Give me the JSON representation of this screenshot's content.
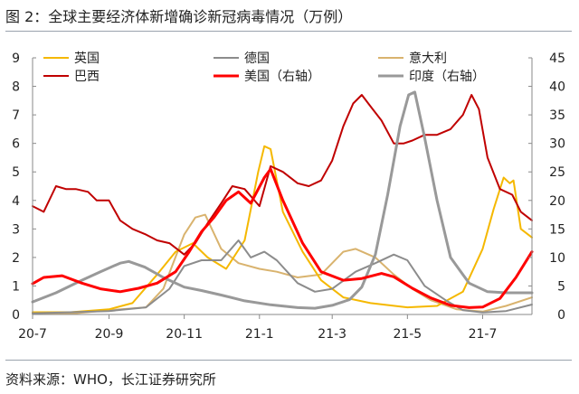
{
  "title": "图 2：全球主要经济体新增确诊新冠病毒情况（万例）",
  "source": "资料来源：WHO，长江证券研究所",
  "chart_data": {
    "type": "line",
    "x_ticks": [
      "20-7",
      "20-9",
      "20-11",
      "21-1",
      "21-3",
      "21-5",
      "21-7"
    ],
    "x_range": [
      "2020-07-01",
      "2021-08-10"
    ],
    "ylim_left": [
      0,
      9
    ],
    "yticks_left": [
      "0",
      "1",
      "2",
      "3",
      "4",
      "5",
      "6",
      "7",
      "8",
      "9"
    ],
    "ylim_right": [
      0,
      45
    ],
    "yticks_right": [
      "0",
      "5",
      "10",
      "15",
      "20",
      "25",
      "30",
      "35",
      "40",
      "45"
    ],
    "grid": false,
    "legend": "top",
    "series": [
      {
        "name": "英国",
        "color": "#F5B800",
        "axis": "left",
        "width": 2,
        "points": [
          [
            "2020-07-01",
            0.08
          ],
          [
            "2020-08-01",
            0.08
          ],
          [
            "2020-09-01",
            0.18
          ],
          [
            "2020-09-20",
            0.4
          ],
          [
            "2020-10-10",
            1.4
          ],
          [
            "2020-10-25",
            2.2
          ],
          [
            "2020-11-08",
            2.5
          ],
          [
            "2020-11-20",
            2.0
          ],
          [
            "2020-12-05",
            1.6
          ],
          [
            "2020-12-20",
            2.6
          ],
          [
            "2020-12-31",
            5.0
          ],
          [
            "2021-01-05",
            5.9
          ],
          [
            "2021-01-10",
            5.8
          ],
          [
            "2021-01-20",
            3.6
          ],
          [
            "2021-02-05",
            2.2
          ],
          [
            "2021-02-20",
            1.2
          ],
          [
            "2021-03-10",
            0.6
          ],
          [
            "2021-04-01",
            0.4
          ],
          [
            "2021-05-01",
            0.25
          ],
          [
            "2021-05-25",
            0.3
          ],
          [
            "2021-06-15",
            0.8
          ],
          [
            "2021-07-01",
            2.3
          ],
          [
            "2021-07-10",
            3.7
          ],
          [
            "2021-07-18",
            4.8
          ],
          [
            "2021-07-23",
            4.6
          ],
          [
            "2021-07-26",
            4.7
          ],
          [
            "2021-08-01",
            3.0
          ],
          [
            "2021-08-10",
            2.7
          ]
        ]
      },
      {
        "name": "德国",
        "color": "#8C8C8C",
        "axis": "left",
        "width": 2,
        "points": [
          [
            "2020-07-01",
            0.04
          ],
          [
            "2020-08-01",
            0.08
          ],
          [
            "2020-09-01",
            0.12
          ],
          [
            "2020-10-01",
            0.25
          ],
          [
            "2020-10-20",
            0.9
          ],
          [
            "2020-11-01",
            1.7
          ],
          [
            "2020-11-15",
            1.9
          ],
          [
            "2020-12-01",
            1.9
          ],
          [
            "2020-12-15",
            2.6
          ],
          [
            "2020-12-25",
            2.0
          ],
          [
            "2021-01-05",
            2.2
          ],
          [
            "2021-01-15",
            1.9
          ],
          [
            "2021-02-01",
            1.1
          ],
          [
            "2021-02-15",
            0.8
          ],
          [
            "2021-03-01",
            0.9
          ],
          [
            "2021-03-20",
            1.5
          ],
          [
            "2021-04-05",
            1.8
          ],
          [
            "2021-04-20",
            2.1
          ],
          [
            "2021-05-01",
            1.9
          ],
          [
            "2021-05-15",
            1.0
          ],
          [
            "2021-06-01",
            0.5
          ],
          [
            "2021-06-15",
            0.15
          ],
          [
            "2021-07-01",
            0.07
          ],
          [
            "2021-07-20",
            0.12
          ],
          [
            "2021-08-10",
            0.35
          ]
        ]
      },
      {
        "name": "意大利",
        "color": "#D9B36E",
        "axis": "left",
        "width": 2,
        "points": [
          [
            "2020-07-01",
            0.02
          ],
          [
            "2020-08-01",
            0.03
          ],
          [
            "2020-09-01",
            0.15
          ],
          [
            "2020-10-01",
            0.25
          ],
          [
            "2020-10-15",
            0.9
          ],
          [
            "2020-11-01",
            2.8
          ],
          [
            "2020-11-10",
            3.4
          ],
          [
            "2020-11-18",
            3.5
          ],
          [
            "2020-12-01",
            2.3
          ],
          [
            "2020-12-15",
            1.8
          ],
          [
            "2021-01-01",
            1.6
          ],
          [
            "2021-01-15",
            1.5
          ],
          [
            "2021-02-01",
            1.3
          ],
          [
            "2021-02-20",
            1.4
          ],
          [
            "2021-03-10",
            2.2
          ],
          [
            "2021-03-20",
            2.3
          ],
          [
            "2021-04-05",
            2.0
          ],
          [
            "2021-04-20",
            1.4
          ],
          [
            "2021-05-05",
            0.9
          ],
          [
            "2021-05-20",
            0.5
          ],
          [
            "2021-06-10",
            0.18
          ],
          [
            "2021-07-01",
            0.1
          ],
          [
            "2021-07-20",
            0.3
          ],
          [
            "2021-08-10",
            0.6
          ]
        ]
      },
      {
        "name": "巴西",
        "color": "#C00000",
        "axis": "left",
        "width": 2,
        "points": [
          [
            "2020-07-01",
            3.8
          ],
          [
            "2020-07-10",
            3.6
          ],
          [
            "2020-07-20",
            4.5
          ],
          [
            "2020-07-28",
            4.4
          ],
          [
            "2020-08-05",
            4.4
          ],
          [
            "2020-08-15",
            4.3
          ],
          [
            "2020-08-22",
            4.0
          ],
          [
            "2020-09-01",
            4.0
          ],
          [
            "2020-09-10",
            3.3
          ],
          [
            "2020-09-20",
            3.0
          ],
          [
            "2020-10-01",
            2.8
          ],
          [
            "2020-10-10",
            2.6
          ],
          [
            "2020-10-20",
            2.5
          ],
          [
            "2020-11-01",
            2.1
          ],
          [
            "2020-11-10",
            2.5
          ],
          [
            "2020-11-20",
            3.2
          ],
          [
            "2020-12-01",
            3.9
          ],
          [
            "2020-12-10",
            4.5
          ],
          [
            "2020-12-20",
            4.4
          ],
          [
            "2021-01-01",
            3.8
          ],
          [
            "2021-01-10",
            5.2
          ],
          [
            "2021-01-20",
            5.0
          ],
          [
            "2021-02-01",
            4.6
          ],
          [
            "2021-02-10",
            4.5
          ],
          [
            "2021-02-20",
            4.7
          ],
          [
            "2021-03-01",
            5.4
          ],
          [
            "2021-03-10",
            6.6
          ],
          [
            "2021-03-18",
            7.4
          ],
          [
            "2021-03-25",
            7.7
          ],
          [
            "2021-04-01",
            7.3
          ],
          [
            "2021-04-10",
            6.8
          ],
          [
            "2021-04-20",
            6.0
          ],
          [
            "2021-04-28",
            6.0
          ],
          [
            "2021-05-05",
            6.1
          ],
          [
            "2021-05-15",
            6.3
          ],
          [
            "2021-05-25",
            6.3
          ],
          [
            "2021-06-05",
            6.5
          ],
          [
            "2021-06-15",
            7.0
          ],
          [
            "2021-06-22",
            7.7
          ],
          [
            "2021-06-28",
            7.2
          ],
          [
            "2021-07-05",
            5.5
          ],
          [
            "2021-07-15",
            4.4
          ],
          [
            "2021-07-25",
            4.2
          ],
          [
            "2021-08-01",
            3.6
          ],
          [
            "2021-08-10",
            3.3
          ]
        ]
      },
      {
        "name": "美国（右轴）",
        "color": "#FF0000",
        "axis": "right",
        "width": 3,
        "points": [
          [
            "2020-07-01",
            5.4
          ],
          [
            "2020-07-10",
            6.5
          ],
          [
            "2020-07-25",
            6.8
          ],
          [
            "2020-08-10",
            5.5
          ],
          [
            "2020-08-25",
            4.5
          ],
          [
            "2020-09-10",
            4.0
          ],
          [
            "2020-09-25",
            4.6
          ],
          [
            "2020-10-10",
            5.5
          ],
          [
            "2020-10-25",
            7.5
          ],
          [
            "2020-11-05",
            11.0
          ],
          [
            "2020-11-15",
            14.5
          ],
          [
            "2020-11-25",
            17.0
          ],
          [
            "2020-12-05",
            20.0
          ],
          [
            "2020-12-15",
            21.5
          ],
          [
            "2020-12-25",
            19.5
          ],
          [
            "2021-01-05",
            24.0
          ],
          [
            "2021-01-10",
            25.5
          ],
          [
            "2021-01-20",
            20.0
          ],
          [
            "2021-02-05",
            12.5
          ],
          [
            "2021-02-20",
            7.5
          ],
          [
            "2021-03-10",
            6.0
          ],
          [
            "2021-03-25",
            6.3
          ],
          [
            "2021-04-10",
            7.2
          ],
          [
            "2021-04-20",
            6.6
          ],
          [
            "2021-05-05",
            4.6
          ],
          [
            "2021-05-20",
            2.9
          ],
          [
            "2021-06-05",
            1.6
          ],
          [
            "2021-06-20",
            1.2
          ],
          [
            "2021-07-01",
            1.3
          ],
          [
            "2021-07-15",
            2.8
          ],
          [
            "2021-07-28",
            6.5
          ],
          [
            "2021-08-10",
            11.0
          ]
        ]
      },
      {
        "name": "印度（右轴）",
        "color": "#999999",
        "axis": "right",
        "width": 3,
        "points": [
          [
            "2020-07-01",
            2.2
          ],
          [
            "2020-07-20",
            3.8
          ],
          [
            "2020-08-10",
            6.0
          ],
          [
            "2020-08-25",
            7.5
          ],
          [
            "2020-09-10",
            9.0
          ],
          [
            "2020-09-17",
            9.3
          ],
          [
            "2020-09-30",
            8.3
          ],
          [
            "2020-10-15",
            6.5
          ],
          [
            "2020-11-01",
            4.8
          ],
          [
            "2020-11-15",
            4.2
          ],
          [
            "2020-12-01",
            3.4
          ],
          [
            "2020-12-20",
            2.4
          ],
          [
            "2021-01-10",
            1.7
          ],
          [
            "2021-02-01",
            1.2
          ],
          [
            "2021-02-15",
            1.1
          ],
          [
            "2021-03-01",
            1.6
          ],
          [
            "2021-03-15",
            2.6
          ],
          [
            "2021-03-25",
            4.8
          ],
          [
            "2021-04-05",
            10.5
          ],
          [
            "2021-04-15",
            21.0
          ],
          [
            "2021-04-25",
            33.0
          ],
          [
            "2021-05-02",
            38.5
          ],
          [
            "2021-05-07",
            39.0
          ],
          [
            "2021-05-15",
            31.0
          ],
          [
            "2021-05-25",
            20.0
          ],
          [
            "2021-06-05",
            10.0
          ],
          [
            "2021-06-20",
            5.5
          ],
          [
            "2021-07-05",
            4.0
          ],
          [
            "2021-07-20",
            3.8
          ],
          [
            "2021-08-10",
            3.8
          ]
        ]
      }
    ]
  }
}
